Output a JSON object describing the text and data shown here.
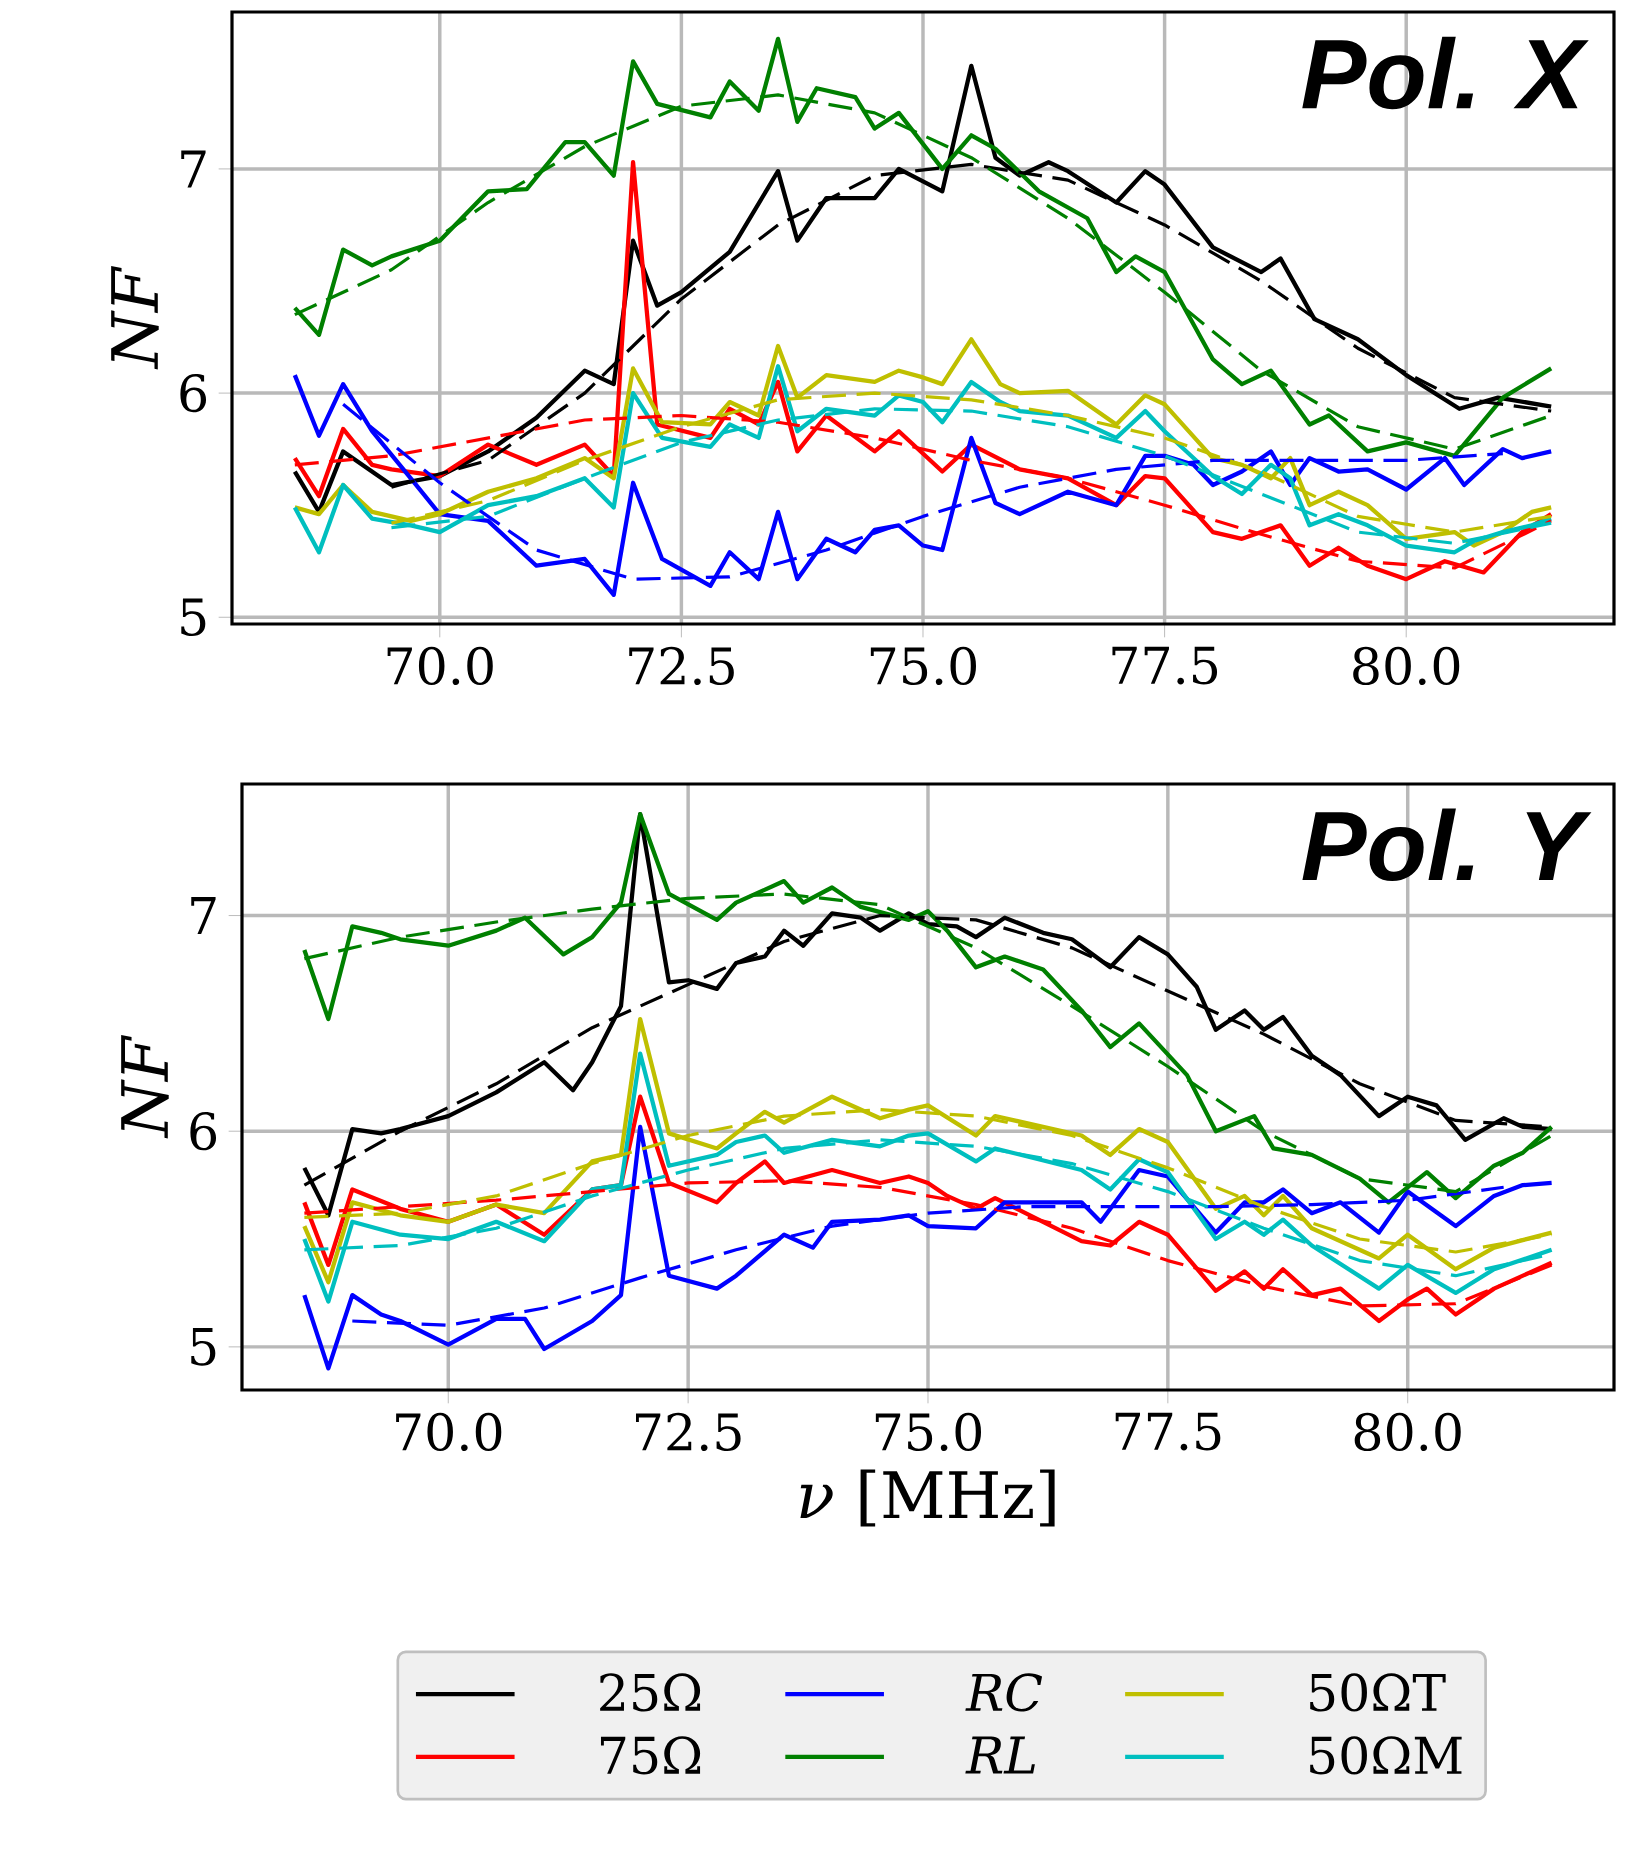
{
  "chart_data": [
    {
      "type": "line",
      "title": "Pol. X",
      "ylabel": "NF",
      "xlim": [
        67.85,
        82.15
      ],
      "ylim": [
        4.97,
        7.7
      ],
      "xticks": [
        {
          "value": 70,
          "label": "70.0"
        },
        {
          "value": 72.5,
          "label": "72.5"
        },
        {
          "value": 75,
          "label": "75.0"
        },
        {
          "value": 77.5,
          "label": "77.5"
        },
        {
          "value": 80,
          "label": "80.0"
        }
      ],
      "yticks": [
        5,
        6,
        7
      ],
      "grid": true,
      "series": [
        {
          "color": "#000000",
          "x": [
            68.5,
            68.75,
            69,
            69.5,
            70,
            70.5,
            71,
            71.5,
            71.8,
            72,
            72.25,
            72.5,
            73,
            73.5,
            73.7,
            74,
            74.5,
            74.75,
            75.2,
            75.5,
            75.75,
            76,
            76.3,
            76.5,
            77,
            77.3,
            77.5,
            78,
            78.5,
            78.7,
            79.05,
            79.5,
            80,
            80.55,
            80.95,
            81.5
          ],
          "values": [
            5.65,
            5.47,
            5.74,
            5.59,
            5.63,
            5.74,
            5.89,
            6.1,
            6.04,
            6.68,
            6.39,
            6.45,
            6.63,
            6.99,
            6.68,
            6.87,
            6.87,
            7.0,
            6.9,
            7.46,
            7.05,
            6.97,
            7.03,
            6.99,
            6.85,
            6.99,
            6.93,
            6.65,
            6.54,
            6.6,
            6.33,
            6.24,
            6.08,
            5.93,
            5.98,
            5.94
          ]
        },
        {
          "color": "#ff0000",
          "x": [
            68.5,
            68.75,
            69,
            69.3,
            69.5,
            70,
            70.5,
            71,
            71.5,
            71.8,
            72,
            72.25,
            72.8,
            73,
            73.3,
            73.5,
            73.7,
            74,
            74.5,
            74.75,
            75.2,
            75.5,
            76,
            76.5,
            77,
            77.3,
            77.5,
            78,
            78.3,
            78.7,
            79,
            79.3,
            79.6,
            80,
            80.4,
            80.8,
            81.2,
            81.5
          ],
          "values": [
            5.71,
            5.54,
            5.84,
            5.68,
            5.66,
            5.63,
            5.77,
            5.68,
            5.77,
            5.63,
            7.03,
            5.86,
            5.8,
            5.93,
            5.86,
            6.05,
            5.74,
            5.9,
            5.74,
            5.83,
            5.65,
            5.77,
            5.66,
            5.62,
            5.5,
            5.63,
            5.62,
            5.38,
            5.35,
            5.41,
            5.23,
            5.31,
            5.23,
            5.17,
            5.25,
            5.2,
            5.38,
            5.46
          ]
        },
        {
          "color": "#0000ff",
          "x": [
            68.5,
            68.75,
            69,
            69.3,
            69.7,
            70,
            70.5,
            71,
            71.5,
            71.8,
            72,
            72.3,
            72.8,
            73,
            73.3,
            73.5,
            73.7,
            74,
            74.3,
            74.5,
            74.75,
            75,
            75.2,
            75.5,
            75.75,
            76,
            76.5,
            77,
            77.3,
            77.5,
            77.8,
            78,
            78.3,
            78.6,
            78.8,
            79,
            79.3,
            79.6,
            80,
            80.4,
            80.6,
            81,
            81.2,
            81.5
          ],
          "values": [
            6.08,
            5.81,
            6.04,
            5.83,
            5.62,
            5.46,
            5.43,
            5.23,
            5.26,
            5.1,
            5.6,
            5.26,
            5.14,
            5.29,
            5.17,
            5.47,
            5.17,
            5.35,
            5.29,
            5.39,
            5.41,
            5.32,
            5.3,
            5.8,
            5.51,
            5.46,
            5.56,
            5.5,
            5.72,
            5.72,
            5.68,
            5.59,
            5.65,
            5.74,
            5.59,
            5.71,
            5.65,
            5.66,
            5.57,
            5.71,
            5.59,
            5.75,
            5.71,
            5.74
          ]
        },
        {
          "color": "#008000",
          "x": [
            68.5,
            68.75,
            69,
            69.3,
            69.5,
            70,
            70.5,
            70.9,
            71.3,
            71.5,
            71.8,
            72,
            72.25,
            72.8,
            73,
            73.3,
            73.5,
            73.7,
            73.9,
            74.3,
            74.5,
            74.75,
            75.2,
            75.5,
            75.75,
            76.2,
            76.7,
            77,
            77.2,
            77.5,
            78,
            78.3,
            78.6,
            79,
            79.2,
            79.6,
            80,
            80.5,
            81,
            81.5
          ],
          "values": [
            6.38,
            6.26,
            6.64,
            6.57,
            6.61,
            6.68,
            6.9,
            6.91,
            7.12,
            7.12,
            6.97,
            7.48,
            7.29,
            7.23,
            7.39,
            7.26,
            7.58,
            7.21,
            7.36,
            7.32,
            7.18,
            7.25,
            7.0,
            7.15,
            7.09,
            6.9,
            6.78,
            6.54,
            6.61,
            6.54,
            6.15,
            6.04,
            6.1,
            5.86,
            5.9,
            5.74,
            5.78,
            5.72,
            5.98,
            6.11
          ]
        },
        {
          "color": "#bfbf00",
          "x": [
            68.5,
            68.75,
            69,
            69.3,
            69.7,
            70,
            70.5,
            71,
            71.5,
            71.8,
            72,
            72.3,
            72.8,
            73,
            73.3,
            73.5,
            73.7,
            74,
            74.5,
            74.75,
            75,
            75.2,
            75.5,
            75.8,
            76,
            76.5,
            77,
            77.3,
            77.5,
            78,
            78.3,
            78.6,
            78.8,
            79,
            79.3,
            79.6,
            80,
            80.5,
            80.7,
            81,
            81.3,
            81.5
          ],
          "values": [
            5.49,
            5.46,
            5.59,
            5.47,
            5.43,
            5.46,
            5.56,
            5.62,
            5.71,
            5.62,
            6.11,
            5.87,
            5.86,
            5.96,
            5.9,
            6.21,
            5.98,
            6.08,
            6.05,
            6.1,
            6.07,
            6.04,
            6.24,
            6.04,
            6.0,
            6.01,
            5.86,
            5.99,
            5.95,
            5.71,
            5.68,
            5.62,
            5.71,
            5.5,
            5.56,
            5.5,
            5.35,
            5.38,
            5.32,
            5.38,
            5.47,
            5.49
          ]
        },
        {
          "color": "#00bfbf",
          "x": [
            68.5,
            68.75,
            69,
            69.3,
            69.7,
            70,
            70.5,
            71,
            71.5,
            71.8,
            72,
            72.3,
            72.8,
            73,
            73.3,
            73.5,
            73.7,
            74,
            74.5,
            74.75,
            75,
            75.2,
            75.5,
            75.8,
            76,
            76.5,
            77,
            77.3,
            77.5,
            78,
            78.3,
            78.6,
            78.8,
            79,
            79.3,
            79.6,
            80,
            80.5,
            80.7,
            81,
            81.3,
            81.5
          ],
          "values": [
            5.49,
            5.29,
            5.59,
            5.44,
            5.41,
            5.38,
            5.5,
            5.54,
            5.62,
            5.49,
            6.0,
            5.8,
            5.76,
            5.86,
            5.8,
            6.12,
            5.83,
            5.93,
            5.9,
            5.99,
            5.96,
            5.87,
            6.05,
            5.96,
            5.92,
            5.9,
            5.8,
            5.92,
            5.83,
            5.63,
            5.55,
            5.68,
            5.62,
            5.41,
            5.46,
            5.41,
            5.32,
            5.29,
            5.34,
            5.38,
            5.41,
            5.44
          ]
        },
        {
          "color": "#000000",
          "line_style": "dashed",
          "x": [
            69.5,
            70.5,
            71.5,
            72.5,
            73.5,
            74.5,
            75.5,
            76.5,
            77.5,
            78.5,
            79.5,
            80.5,
            81.5
          ],
          "values": [
            5.58,
            5.7,
            6.0,
            6.42,
            6.75,
            6.97,
            7.02,
            6.95,
            6.75,
            6.5,
            6.2,
            5.98,
            5.92
          ]
        },
        {
          "color": "#ff0000",
          "line_style": "dashed",
          "x": [
            68.5,
            69.5,
            70.5,
            71.5,
            72.5,
            73.5,
            74.5,
            75.5,
            76.5,
            77.5,
            78.5,
            79.5,
            80.5,
            81.5
          ],
          "values": [
            5.68,
            5.72,
            5.8,
            5.88,
            5.9,
            5.87,
            5.8,
            5.7,
            5.62,
            5.5,
            5.37,
            5.25,
            5.22,
            5.43
          ]
        },
        {
          "color": "#0000ff",
          "line_style": "dashed",
          "x": [
            69,
            70,
            71,
            72,
            73,
            74,
            75,
            76,
            77,
            78,
            79,
            80,
            81
          ],
          "values": [
            5.95,
            5.6,
            5.3,
            5.17,
            5.18,
            5.3,
            5.45,
            5.58,
            5.66,
            5.7,
            5.7,
            5.7,
            5.73
          ]
        },
        {
          "color": "#008000",
          "line_style": "dashed",
          "x": [
            68.5,
            69.5,
            70.5,
            71.5,
            72.5,
            73.5,
            74.5,
            75.5,
            76.5,
            77.5,
            78.5,
            79.5,
            80.5,
            81.5
          ],
          "values": [
            6.35,
            6.55,
            6.85,
            7.1,
            7.28,
            7.33,
            7.25,
            7.05,
            6.78,
            6.45,
            6.1,
            5.85,
            5.75,
            5.9
          ]
        },
        {
          "color": "#bfbf00",
          "line_style": "dashed",
          "x": [
            69.5,
            70.5,
            71.5,
            72.5,
            73.5,
            74.5,
            75.5,
            76.5,
            77.5,
            78.5,
            79.5,
            80.5,
            81.5
          ],
          "values": [
            5.42,
            5.52,
            5.7,
            5.85,
            5.97,
            6.0,
            5.97,
            5.9,
            5.8,
            5.65,
            5.45,
            5.38,
            5.45
          ]
        },
        {
          "color": "#00bfbf",
          "line_style": "dashed",
          "x": [
            69.5,
            70.5,
            71.5,
            72.5,
            73.5,
            74.5,
            75.5,
            76.5,
            77.5,
            78.5,
            79.5,
            80.5,
            81.5
          ],
          "values": [
            5.4,
            5.45,
            5.62,
            5.78,
            5.88,
            5.93,
            5.92,
            5.85,
            5.72,
            5.55,
            5.38,
            5.33,
            5.42
          ]
        }
      ]
    },
    {
      "type": "line",
      "title": "Pol. Y",
      "xlabel": "*ν* [MHz]",
      "ylabel": "NF",
      "xlim": [
        67.85,
        82.15
      ],
      "ylim": [
        4.8,
        7.61
      ],
      "xticks": [
        {
          "value": 70,
          "label": "70.0"
        },
        {
          "value": 72.5,
          "label": "72.5"
        },
        {
          "value": 75,
          "label": "75.0"
        },
        {
          "value": 77.5,
          "label": "77.5"
        },
        {
          "value": 80,
          "label": "80.0"
        }
      ],
      "yticks": [
        5,
        6,
        7
      ],
      "grid": true,
      "legend": "bottom",
      "series": [
        {
          "name": "25Ω",
          "color": "#000000",
          "x": [
            68.5,
            68.75,
            69,
            69.3,
            69.5,
            70,
            70.5,
            71,
            71.3,
            71.5,
            71.8,
            72,
            72.3,
            72.5,
            72.8,
            73,
            73.3,
            73.5,
            73.7,
            74,
            74.3,
            74.5,
            74.8,
            75,
            75.3,
            75.5,
            75.8,
            76.2,
            76.5,
            76.9,
            77.2,
            77.5,
            77.8,
            78,
            78.3,
            78.5,
            78.7,
            79,
            79.3,
            79.7,
            80,
            80.3,
            80.6,
            81,
            81.2,
            81.5
          ],
          "values": [
            5.83,
            5.61,
            6.01,
            5.99,
            6.01,
            6.07,
            6.18,
            6.32,
            6.19,
            6.32,
            6.58,
            7.47,
            6.69,
            6.7,
            6.66,
            6.78,
            6.81,
            6.93,
            6.86,
            7.01,
            6.99,
            6.93,
            7.01,
            6.96,
            6.95,
            6.9,
            6.99,
            6.92,
            6.89,
            6.76,
            6.9,
            6.82,
            6.67,
            6.47,
            6.56,
            6.47,
            6.53,
            6.35,
            6.26,
            6.07,
            6.16,
            6.12,
            5.96,
            6.06,
            6.02,
            6.01
          ]
        },
        {
          "name": "75Ω",
          "color": "#ff0000",
          "x": [
            68.5,
            68.75,
            69,
            69.5,
            70,
            70.5,
            71,
            71.5,
            71.8,
            72,
            72.3,
            72.8,
            73,
            73.3,
            73.5,
            74,
            74.5,
            74.8,
            75,
            75.2,
            75.5,
            75.7,
            76.6,
            76.9,
            77.2,
            77.5,
            78,
            78.3,
            78.5,
            78.7,
            79,
            79.3,
            79.7,
            80,
            80.2,
            80.5,
            80.9,
            81.5
          ],
          "values": [
            5.67,
            5.38,
            5.73,
            5.64,
            5.58,
            5.66,
            5.52,
            5.73,
            5.75,
            6.16,
            5.76,
            5.67,
            5.76,
            5.86,
            5.76,
            5.82,
            5.76,
            5.79,
            5.76,
            5.7,
            5.64,
            5.69,
            5.49,
            5.47,
            5.58,
            5.52,
            5.26,
            5.35,
            5.27,
            5.36,
            5.24,
            5.27,
            5.12,
            5.22,
            5.27,
            5.15,
            5.27,
            5.39
          ]
        },
        {
          "name": "*RC*",
          "color": "#0000ff",
          "x": [
            68.5,
            68.75,
            69,
            69.3,
            69.5,
            70,
            70.5,
            70.8,
            71,
            71.5,
            71.8,
            72,
            72.3,
            72.8,
            73,
            73.5,
            73.8,
            74,
            74.5,
            74.8,
            75,
            75.5,
            75.8,
            76.6,
            76.8,
            77.2,
            77.5,
            78,
            78.3,
            78.5,
            78.7,
            79,
            79.3,
            79.7,
            80,
            80.5,
            80.9,
            81.2,
            81.5
          ],
          "values": [
            5.24,
            4.9,
            5.24,
            5.15,
            5.12,
            5.01,
            5.13,
            5.13,
            4.99,
            5.12,
            5.24,
            6.02,
            5.33,
            5.27,
            5.33,
            5.52,
            5.46,
            5.58,
            5.59,
            5.61,
            5.56,
            5.55,
            5.67,
            5.67,
            5.58,
            5.82,
            5.79,
            5.53,
            5.67,
            5.67,
            5.73,
            5.62,
            5.67,
            5.53,
            5.72,
            5.56,
            5.7,
            5.75,
            5.76
          ]
        },
        {
          "name": "*RL*",
          "color": "#008000",
          "x": [
            68.5,
            68.75,
            69,
            69.3,
            69.5,
            70,
            70.5,
            70.8,
            71.2,
            71.5,
            71.8,
            72,
            72.3,
            72.8,
            73,
            73.5,
            73.7,
            74,
            74.3,
            74.8,
            75,
            75.2,
            75.5,
            75.8,
            76.2,
            76.6,
            76.9,
            77.2,
            77.7,
            78,
            78.4,
            78.6,
            79,
            79.5,
            79.8,
            80.2,
            80.5,
            80.9,
            81.2,
            81.5
          ],
          "values": [
            6.84,
            6.52,
            6.95,
            6.92,
            6.89,
            6.86,
            6.93,
            6.99,
            6.82,
            6.9,
            7.06,
            7.47,
            7.1,
            6.98,
            7.06,
            7.16,
            7.06,
            7.13,
            7.04,
            6.98,
            7.02,
            6.93,
            6.76,
            6.81,
            6.75,
            6.56,
            6.39,
            6.5,
            6.26,
            6.0,
            6.07,
            5.92,
            5.89,
            5.78,
            5.67,
            5.81,
            5.69,
            5.84,
            5.9,
            6.02
          ]
        },
        {
          "name": "50ΩT",
          "color": "#bfbf00",
          "x": [
            68.5,
            68.75,
            69,
            69.5,
            70,
            70.5,
            71,
            71.5,
            71.8,
            72,
            72.3,
            72.8,
            73,
            73.3,
            73.5,
            74,
            74.5,
            74.8,
            75,
            75.5,
            75.7,
            76.6,
            76.9,
            77.2,
            77.5,
            78,
            78.3,
            78.5,
            78.7,
            79,
            79.7,
            80,
            80.5,
            80.9,
            81.5
          ],
          "values": [
            5.56,
            5.3,
            5.67,
            5.61,
            5.58,
            5.66,
            5.62,
            5.86,
            5.89,
            6.52,
            5.99,
            5.92,
            5.99,
            6.09,
            6.04,
            6.16,
            6.06,
            6.1,
            6.12,
            5.98,
            6.07,
            5.98,
            5.89,
            6.01,
            5.95,
            5.64,
            5.7,
            5.61,
            5.7,
            5.55,
            5.41,
            5.52,
            5.36,
            5.46,
            5.53
          ]
        },
        {
          "name": "50ΩM",
          "color": "#00bfbf",
          "x": [
            68.5,
            68.75,
            69,
            69.5,
            70,
            70.5,
            71,
            71.5,
            71.8,
            72,
            72.3,
            72.8,
            73,
            73.3,
            73.5,
            74,
            74.5,
            74.8,
            75,
            75.5,
            75.7,
            76.6,
            76.9,
            77.2,
            77.5,
            78,
            78.3,
            78.5,
            78.7,
            79,
            79.7,
            80,
            80.5,
            80.9,
            81.5
          ],
          "values": [
            5.5,
            5.21,
            5.58,
            5.52,
            5.5,
            5.58,
            5.49,
            5.73,
            5.75,
            6.36,
            5.84,
            5.89,
            5.95,
            5.98,
            5.9,
            5.96,
            5.93,
            5.98,
            5.99,
            5.86,
            5.92,
            5.82,
            5.73,
            5.87,
            5.81,
            5.5,
            5.58,
            5.52,
            5.59,
            5.47,
            5.27,
            5.38,
            5.25,
            5.36,
            5.45
          ]
        },
        {
          "color": "#000000",
          "line_style": "dashed",
          "x": [
            68.5,
            69.5,
            70.5,
            71.5,
            72.5,
            73.5,
            74.5,
            75.5,
            76.5,
            77.5,
            78.5,
            79.5,
            80.5,
            81.5
          ],
          "values": [
            5.75,
            6.0,
            6.22,
            6.48,
            6.68,
            6.88,
            7.0,
            6.98,
            6.85,
            6.65,
            6.45,
            6.22,
            6.05,
            6.02
          ]
        },
        {
          "color": "#ff0000",
          "line_style": "dashed",
          "x": [
            68.5,
            69.5,
            70.5,
            71.5,
            72.5,
            73.5,
            74.5,
            75.5,
            76.5,
            77.5,
            78.5,
            79.5,
            80.5,
            81.5
          ],
          "values": [
            5.62,
            5.65,
            5.68,
            5.72,
            5.76,
            5.77,
            5.74,
            5.66,
            5.55,
            5.4,
            5.28,
            5.19,
            5.2,
            5.38
          ]
        },
        {
          "color": "#0000ff",
          "line_style": "dashed",
          "x": [
            69,
            70,
            71,
            72,
            73,
            74,
            75,
            76,
            77,
            78,
            79,
            80,
            81
          ],
          "values": [
            5.12,
            5.1,
            5.18,
            5.32,
            5.45,
            5.56,
            5.62,
            5.65,
            5.65,
            5.65,
            5.66,
            5.68,
            5.74
          ]
        },
        {
          "color": "#008000",
          "line_style": "dashed",
          "x": [
            68.5,
            69.5,
            70.5,
            71.5,
            72.5,
            73.5,
            74.5,
            75.5,
            76.5,
            77.5,
            78.5,
            79.5,
            80.5,
            81.5
          ],
          "values": [
            6.8,
            6.9,
            6.97,
            7.03,
            7.08,
            7.1,
            7.05,
            6.85,
            6.58,
            6.3,
            6.0,
            5.78,
            5.72,
            5.98
          ]
        },
        {
          "color": "#bfbf00",
          "line_style": "dashed",
          "x": [
            68.5,
            69.5,
            70.5,
            71.5,
            72.5,
            73.5,
            74.5,
            75.5,
            76.5,
            77.5,
            78.5,
            79.5,
            80.5,
            81.5
          ],
          "values": [
            5.6,
            5.62,
            5.7,
            5.85,
            5.98,
            6.07,
            6.1,
            6.07,
            5.98,
            5.83,
            5.65,
            5.5,
            5.44,
            5.52
          ]
        },
        {
          "color": "#00bfbf",
          "line_style": "dashed",
          "x": [
            68.5,
            69.5,
            70.5,
            71.5,
            72.5,
            73.5,
            74.5,
            75.5,
            76.5,
            77.5,
            78.5,
            79.5,
            80.5,
            81.5
          ],
          "values": [
            5.45,
            5.47,
            5.55,
            5.7,
            5.82,
            5.92,
            5.96,
            5.93,
            5.85,
            5.72,
            5.55,
            5.4,
            5.33,
            5.43
          ]
        }
      ]
    }
  ]
}
